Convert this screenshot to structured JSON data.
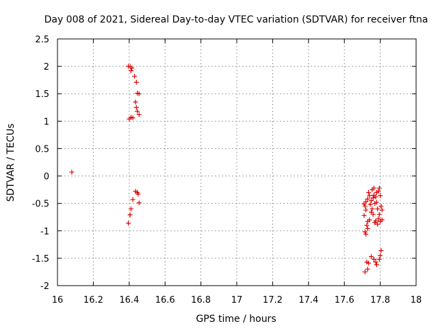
{
  "chart_data": {
    "type": "scatter",
    "title": "Day 008 of 2021, Sidereal Day-to-day VTEC variation (SDTVAR) for receiver ftna",
    "xlabel": "GPS time / hours",
    "ylabel": "SDTVAR / TECUs",
    "xlim": [
      16,
      18
    ],
    "ylim": [
      -2,
      2.5
    ],
    "xticks": [
      16,
      16.2,
      16.4,
      16.6,
      16.8,
      17,
      17.2,
      17.4,
      17.6,
      17.8,
      18
    ],
    "xtick_labels": [
      "16",
      "16.2",
      "16.4",
      "16.6",
      "16.8",
      "17",
      "17.2",
      "17.4",
      "17.6",
      "17.8",
      "18"
    ],
    "yticks": [
      -2,
      -1.5,
      -1,
      -0.5,
      0,
      0.5,
      1,
      1.5,
      2,
      2.5
    ],
    "ytick_labels": [
      "-2",
      "-1.5",
      "-1",
      "-0.5",
      "0",
      "0.5",
      "1",
      "1.5",
      "2",
      "2.5"
    ],
    "grid": true,
    "marker": "+",
    "colors": {
      "series": "#dd0000",
      "grid": "#a0a0a0",
      "axis": "#000000"
    },
    "series": [
      {
        "name": "SDTVAR",
        "points": [
          [
            16.08,
            0.07
          ],
          [
            16.395,
            2.0
          ],
          [
            16.405,
            2.0
          ],
          [
            16.415,
            1.97
          ],
          [
            16.41,
            1.92
          ],
          [
            16.43,
            1.82
          ],
          [
            16.44,
            1.71
          ],
          [
            16.445,
            1.51
          ],
          [
            16.455,
            1.5
          ],
          [
            16.435,
            1.35
          ],
          [
            16.44,
            1.25
          ],
          [
            16.445,
            1.18
          ],
          [
            16.455,
            1.12
          ],
          [
            16.4,
            1.04
          ],
          [
            16.41,
            1.07
          ],
          [
            16.42,
            1.06
          ],
          [
            16.435,
            -0.28
          ],
          [
            16.445,
            -0.3
          ],
          [
            16.45,
            -0.33
          ],
          [
            16.42,
            -0.43
          ],
          [
            16.455,
            -0.49
          ],
          [
            16.41,
            -0.6
          ],
          [
            16.405,
            -0.71
          ],
          [
            16.395,
            -0.86
          ],
          [
            17.71,
            -0.51
          ],
          [
            17.72,
            -0.47
          ],
          [
            17.73,
            -0.42
          ],
          [
            17.715,
            -0.55
          ],
          [
            17.72,
            -0.62
          ],
          [
            17.71,
            -0.72
          ],
          [
            17.73,
            -0.83
          ],
          [
            17.725,
            -0.9
          ],
          [
            17.715,
            -1.02
          ],
          [
            17.72,
            -1.06
          ],
          [
            17.73,
            -0.96
          ],
          [
            17.735,
            -0.3
          ],
          [
            17.74,
            -0.36
          ],
          [
            17.745,
            -0.52
          ],
          [
            17.74,
            -0.8
          ],
          [
            17.75,
            -0.45
          ],
          [
            17.755,
            -0.25
          ],
          [
            17.76,
            -0.4
          ],
          [
            17.765,
            -0.22
          ],
          [
            17.755,
            -0.6
          ],
          [
            17.76,
            -0.7
          ],
          [
            17.77,
            -0.5
          ],
          [
            17.775,
            -0.38
          ],
          [
            17.77,
            -0.85
          ],
          [
            17.775,
            -0.82
          ],
          [
            17.78,
            -0.48
          ],
          [
            17.785,
            -0.6
          ],
          [
            17.79,
            -0.28
          ],
          [
            17.795,
            -0.22
          ],
          [
            17.79,
            -0.78
          ],
          [
            17.8,
            -0.36
          ],
          [
            17.805,
            -0.55
          ],
          [
            17.8,
            -0.83
          ],
          [
            17.81,
            -0.62
          ],
          [
            17.81,
            -0.8
          ],
          [
            17.785,
            -0.88
          ],
          [
            17.795,
            -0.7
          ],
          [
            17.75,
            -0.66
          ],
          [
            17.765,
            -0.35
          ],
          [
            17.78,
            -0.3
          ],
          [
            17.715,
            -1.75
          ],
          [
            17.73,
            -1.7
          ],
          [
            17.725,
            -1.57
          ],
          [
            17.735,
            -1.59
          ],
          [
            17.75,
            -1.47
          ],
          [
            17.765,
            -1.52
          ],
          [
            17.775,
            -1.57
          ],
          [
            17.78,
            -1.62
          ],
          [
            17.795,
            -1.52
          ],
          [
            17.8,
            -1.45
          ],
          [
            17.805,
            -1.36
          ]
        ]
      }
    ]
  }
}
